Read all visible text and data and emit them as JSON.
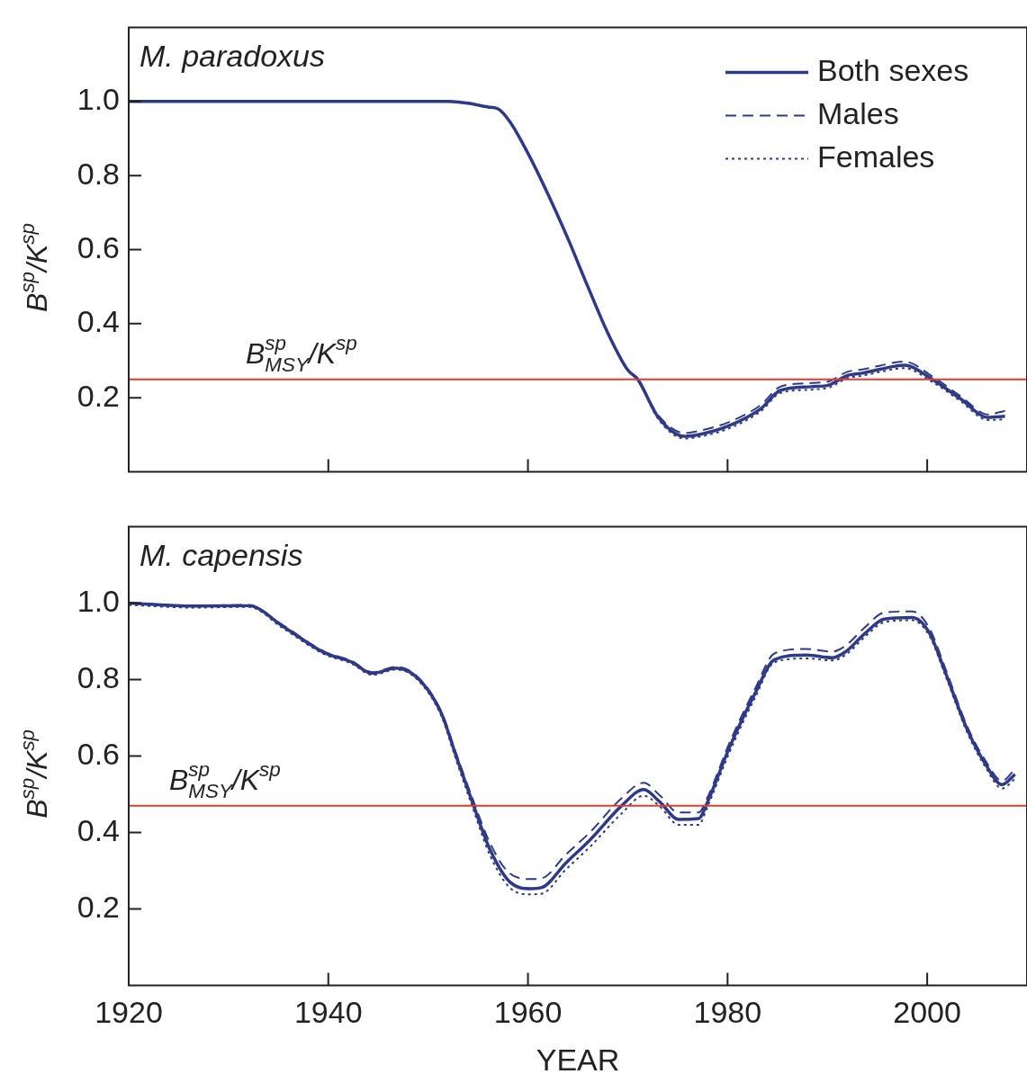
{
  "chart_data": [
    {
      "type": "line",
      "title": "M. paradoxus",
      "ylabel": "B$^{sp}$/K$^{sp}$",
      "xlim": [
        1920,
        2010
      ],
      "xticks": [
        1920,
        1940,
        1960,
        1980,
        2000
      ],
      "ylim": [
        0,
        1.2
      ],
      "yticks": [
        0.2,
        0.4,
        0.6,
        0.8,
        {
          "value": 1,
          "label": "1.0"
        }
      ],
      "tick_labels": "y",
      "legend": "top right",
      "ref_lines": [
        {
          "axis": "y",
          "value": 0.25,
          "label": "B$^{sp}$$_{MSY}$/K$^{sp}$",
          "color": "#e53b2c"
        }
      ],
      "series": [
        {
          "name": "Both sexes",
          "color": "#2e3a87",
          "line_style": "solid",
          "x": [
            1920,
            1930,
            1940,
            1950,
            1952,
            1954,
            1956,
            1957,
            1958.2,
            1960,
            1962,
            1964,
            1966,
            1968,
            1970,
            1971,
            1973,
            1975.7,
            1977,
            1980,
            1983.3,
            1985.3,
            1988.4,
            1990.2,
            1992,
            1993.6,
            1995.3,
            1997.7,
            2000.5,
            2003.3,
            2006.1,
            2007.8
          ],
          "values": [
            1.0,
            1.0,
            1.0,
            1.0,
            1.0,
            0.995,
            0.985,
            0.98,
            0.945,
            0.86,
            0.75,
            0.63,
            0.5,
            0.375,
            0.275,
            0.25,
            0.15,
            0.096,
            0.1,
            0.123,
            0.17,
            0.22,
            0.23,
            0.235,
            0.26,
            0.267,
            0.277,
            0.288,
            0.25,
            0.198,
            0.147,
            0.15
          ]
        },
        {
          "name": "Males",
          "color": "#2e3a87",
          "line_style": "dashed",
          "x": [
            1920,
            1930,
            1940,
            1950,
            1952,
            1954,
            1956,
            1957,
            1958.2,
            1960,
            1962,
            1964,
            1966,
            1968,
            1970,
            1971,
            1973,
            1975.7,
            1977,
            1980,
            1983.3,
            1985.3,
            1988.4,
            1990.2,
            1992,
            1993.6,
            1995.3,
            1997.7,
            2000.5,
            2003.3,
            2006.1,
            2007.8
          ],
          "values": [
            1.0,
            1.0,
            1.0,
            1.0,
            1.0,
            0.995,
            0.985,
            0.98,
            0.945,
            0.86,
            0.75,
            0.63,
            0.5,
            0.375,
            0.275,
            0.25,
            0.155,
            0.105,
            0.11,
            0.133,
            0.18,
            0.23,
            0.24,
            0.245,
            0.27,
            0.277,
            0.287,
            0.298,
            0.258,
            0.205,
            0.155,
            0.165
          ]
        },
        {
          "name": "Females",
          "color": "#2e3a87",
          "line_style": "dotted",
          "x": [
            1920,
            1930,
            1940,
            1950,
            1952,
            1954,
            1956,
            1957,
            1958.2,
            1960,
            1962,
            1964,
            1966,
            1968,
            1970,
            1971,
            1973,
            1975.7,
            1977,
            1980,
            1983.3,
            1985.3,
            1988.4,
            1990.2,
            1992,
            1993.6,
            1995.3,
            1997.7,
            2000.5,
            2003.3,
            2006.1,
            2007.8
          ],
          "values": [
            1.0,
            1.0,
            1.0,
            1.0,
            1.0,
            0.995,
            0.985,
            0.98,
            0.945,
            0.86,
            0.75,
            0.63,
            0.5,
            0.375,
            0.275,
            0.25,
            0.145,
            0.09,
            0.094,
            0.116,
            0.163,
            0.213,
            0.222,
            0.228,
            0.253,
            0.26,
            0.27,
            0.28,
            0.243,
            0.192,
            0.14,
            0.142
          ]
        }
      ]
    },
    {
      "type": "line",
      "title": "M. capensis",
      "ylabel": "B$^{sp}$/K$^{sp}$",
      "xlabel": "YEAR",
      "xlim": [
        1920,
        2010
      ],
      "xticks": [
        1920,
        1940,
        1960,
        1980,
        2000
      ],
      "ylim": [
        0,
        1.2
      ],
      "yticks": [
        0.2,
        0.4,
        0.6,
        0.8,
        {
          "value": 1,
          "label": "1.0"
        }
      ],
      "ref_lines": [
        {
          "axis": "y",
          "value": 0.47,
          "label": "B$^{sp}$$_{MSY}$/K$^{sp}$",
          "color": "#e53b2c"
        }
      ],
      "series": [
        {
          "color": "#2e3a87",
          "line_style": "solid",
          "x": [
            1920,
            1926.5,
            1932,
            1935.4,
            1939.6,
            1942.3,
            1944.4,
            1946.8,
            1948.9,
            1951.3,
            1952.8,
            1954.5,
            1956.2,
            1958.2,
            1960.3,
            1961.4,
            1963.8,
            1966.2,
            1969.4,
            1971.6,
            1973.2,
            1975.1,
            1977.1,
            1978,
            1980.2,
            1982.8,
            1984.7,
            1987.9,
            1990.5,
            1991.8,
            1993.7,
            1995.7,
            1998.5,
            2000.2,
            2001.8,
            2004,
            2005.9,
            2007.5,
            2008.8
          ],
          "values": [
            1.0,
            0.992,
            0.993,
            0.94,
            0.87,
            0.846,
            0.816,
            0.83,
            0.805,
            0.713,
            0.6,
            0.474,
            0.355,
            0.27,
            0.253,
            0.256,
            0.32,
            0.38,
            0.47,
            0.512,
            0.48,
            0.434,
            0.436,
            0.48,
            0.623,
            0.766,
            0.852,
            0.864,
            0.857,
            0.872,
            0.919,
            0.958,
            0.962,
            0.923,
            0.82,
            0.67,
            0.576,
            0.525,
            0.552
          ]
        },
        {
          "color": "#2e3a87",
          "line_style": "dashed",
          "x": [
            1920,
            1926.5,
            1932,
            1935.4,
            1939.6,
            1942.3,
            1944.4,
            1946.8,
            1948.9,
            1951.3,
            1952.8,
            1954.5,
            1956.2,
            1958.2,
            1960.3,
            1961.4,
            1963.8,
            1966.2,
            1969.4,
            1971.6,
            1973.2,
            1975.1,
            1977.1,
            1978,
            1980.2,
            1982.8,
            1984.7,
            1987.9,
            1990.5,
            1991.8,
            1993.7,
            1995.7,
            1998.5,
            2000.2,
            2001.8,
            2004,
            2005.9,
            2007.5,
            2008.8
          ],
          "values": [
            1.0,
            0.993,
            0.995,
            0.943,
            0.873,
            0.849,
            0.819,
            0.833,
            0.808,
            0.717,
            0.607,
            0.485,
            0.372,
            0.292,
            0.278,
            0.28,
            0.342,
            0.4,
            0.49,
            0.53,
            0.497,
            0.452,
            0.452,
            0.492,
            0.635,
            0.778,
            0.868,
            0.88,
            0.873,
            0.888,
            0.935,
            0.975,
            0.978,
            0.935,
            0.83,
            0.678,
            0.585,
            0.535,
            0.565
          ]
        },
        {
          "color": "#2e3a87",
          "line_style": "dotted",
          "x": [
            1920,
            1926.5,
            1932,
            1935.4,
            1939.6,
            1942.3,
            1944.4,
            1946.8,
            1948.9,
            1951.3,
            1952.8,
            1954.5,
            1956.2,
            1958.2,
            1960.3,
            1961.4,
            1963.8,
            1966.2,
            1969.4,
            1971.6,
            1973.2,
            1975.1,
            1977.1,
            1978,
            1980.2,
            1982.8,
            1984.7,
            1987.9,
            1990.5,
            1991.8,
            1993.7,
            1995.7,
            1998.5,
            2000.2,
            2001.8,
            2004,
            2005.9,
            2007.5,
            2008.8
          ],
          "values": [
            0.995,
            0.988,
            0.99,
            0.935,
            0.866,
            0.842,
            0.812,
            0.826,
            0.8,
            0.706,
            0.59,
            0.462,
            0.34,
            0.255,
            0.238,
            0.24,
            0.303,
            0.362,
            0.45,
            0.496,
            0.468,
            0.42,
            0.42,
            0.468,
            0.61,
            0.755,
            0.845,
            0.855,
            0.85,
            0.864,
            0.91,
            0.95,
            0.955,
            0.915,
            0.812,
            0.662,
            0.568,
            0.515,
            0.54
          ]
        }
      ]
    }
  ]
}
